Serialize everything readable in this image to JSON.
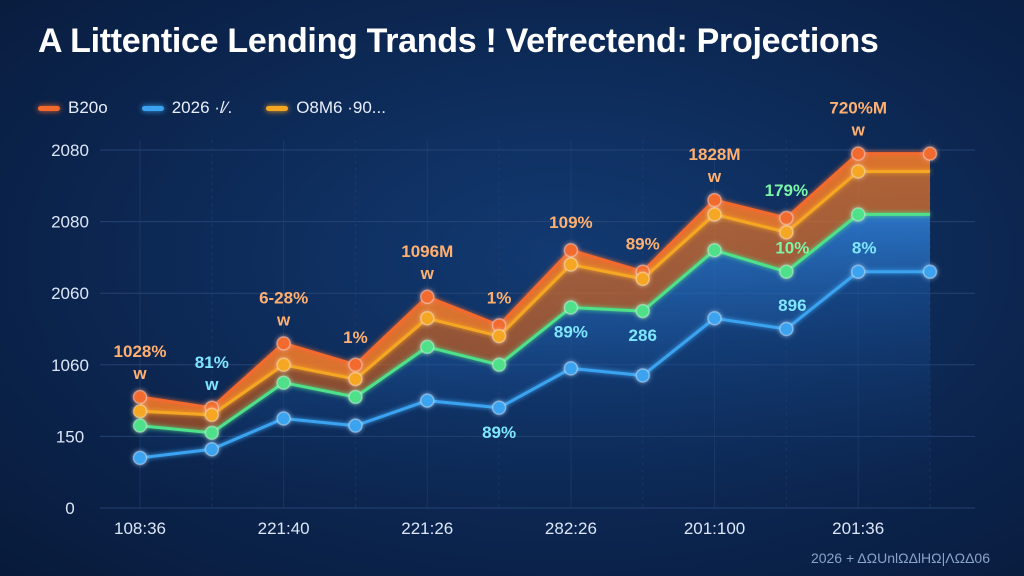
{
  "title": "A Littentice Lending Trands ! Vefrectend: Projections",
  "footer_note": "2026 + ΔΩUnlΩΔlHΩ|ΛΩΔ06",
  "legend": [
    {
      "label": "B20o",
      "color": "#f26a2e"
    },
    {
      "label": "2026 ·/⁄.",
      "color": "#3ba3f0"
    },
    {
      "label": "O8M6 ·90...",
      "color": "#f5a623"
    }
  ],
  "colors": {
    "orange": "#f26a2e",
    "amber": "#f5a623",
    "green": "#4fe08a",
    "blue": "#3ba3f0",
    "grid": "#2a4a7c",
    "label_orange": "#ffb070",
    "label_cyan": "#7fe6ff",
    "label_green": "#7cf5a8"
  },
  "chart_data": {
    "type": "area",
    "title": "A Littentice Lending Trands ! Vefrectend: Projections",
    "xlabel": "",
    "ylabel": "",
    "ylim": [
      0,
      5
    ],
    "y_ticks": [
      "0",
      "150",
      "1060",
      "2060",
      "2080",
      "2080"
    ],
    "x": [
      0,
      1,
      2,
      3,
      4,
      5,
      6,
      7,
      8,
      9,
      10,
      11
    ],
    "x_tick_labels": [
      {
        "x": 0,
        "label": "108:36"
      },
      {
        "x": 2,
        "label": "221:40"
      },
      {
        "x": 4,
        "label": "221:26"
      },
      {
        "x": 6,
        "label": "282:26"
      },
      {
        "x": 8,
        "label": "201:100"
      },
      {
        "x": 10,
        "label": "201:36"
      }
    ],
    "grid": true,
    "legend_position": "top-left",
    "series": [
      {
        "name": "B20o",
        "color": "#f26a2e",
        "values": [
          1.55,
          1.4,
          2.3,
          2.0,
          2.95,
          2.55,
          3.6,
          3.3,
          4.3,
          4.05,
          4.95,
          4.95
        ]
      },
      {
        "color": "#f5a623",
        "values": [
          1.35,
          1.3,
          2.0,
          1.8,
          2.65,
          2.4,
          3.4,
          3.2,
          4.1,
          3.85,
          4.7,
          4.7
        ]
      },
      {
        "color": "#4fe08a",
        "values": [
          1.15,
          1.05,
          1.75,
          1.55,
          2.25,
          2.0,
          2.8,
          2.75,
          3.6,
          3.3,
          4.1,
          4.1
        ]
      },
      {
        "name": "2026 ·/⁄.",
        "color": "#3ba3f0",
        "values": [
          0.7,
          0.82,
          1.25,
          1.15,
          1.5,
          1.4,
          1.95,
          1.85,
          2.65,
          2.5,
          3.3,
          3.3
        ]
      }
    ],
    "annotations": [
      {
        "x": 0,
        "y": 1.55,
        "text": "1028%",
        "marker": "w",
        "color": "orange"
      },
      {
        "x": 1,
        "y": 1.4,
        "text": "81%",
        "marker": "w",
        "color": "cyan"
      },
      {
        "x": 2,
        "y": 2.3,
        "text": "6-28%",
        "marker": "w",
        "color": "orange"
      },
      {
        "x": 3,
        "y": 2.0,
        "text": "1%",
        "marker": "",
        "color": "orange"
      },
      {
        "x": 4,
        "y": 2.95,
        "text": "1096M",
        "marker": "w",
        "color": "orange"
      },
      {
        "x": 5,
        "y": 2.55,
        "text": "1%",
        "marker": "",
        "color": "orange"
      },
      {
        "x": 6,
        "y": 3.6,
        "text": "109%",
        "marker": "",
        "color": "orange"
      },
      {
        "x": 7,
        "y": 3.3,
        "text": "89%",
        "marker": "",
        "color": "orange"
      },
      {
        "x": 8,
        "y": 4.3,
        "text": "1828M",
        "marker": "w",
        "color": "orange"
      },
      {
        "x": 9,
        "y": 4.05,
        "text": "179%",
        "marker": "",
        "color": "green"
      },
      {
        "x": 10,
        "y": 4.95,
        "text": "720%M",
        "marker": "w",
        "color": "orange"
      },
      {
        "x": 5,
        "y": 1.4,
        "text": "89%",
        "marker": "",
        "color": "cyan",
        "below": true
      },
      {
        "x": 6,
        "y": 2.8,
        "text": "89%",
        "marker": "",
        "color": "cyan",
        "below": true
      },
      {
        "x": 7,
        "y": 2.75,
        "text": "286",
        "marker": "",
        "color": "cyan",
        "below": true
      },
      {
        "x": 9,
        "y": 3.3,
        "text": "10%",
        "marker": "",
        "color": "green",
        "side": true
      },
      {
        "x": 9,
        "y": 2.5,
        "text": "896",
        "marker": "",
        "color": "cyan",
        "side": true
      },
      {
        "x": 10,
        "y": 3.3,
        "text": "8%",
        "marker": "",
        "color": "cyan",
        "side": true
      }
    ]
  }
}
